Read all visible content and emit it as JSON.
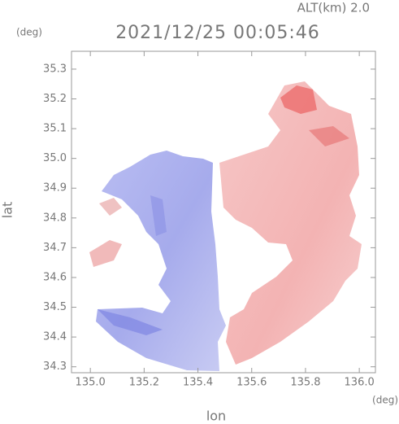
{
  "chart_data": {
    "type": "radar-field",
    "title": "2021/12/25 00:05:46",
    "subtitle": "ALT(km) 2.0",
    "x_label": "lon",
    "y_label": "lat",
    "x_unit": "(deg)",
    "y_unit": "(deg)",
    "xlim": [
      134.93,
      136.06
    ],
    "ylim": [
      34.28,
      35.36
    ],
    "xticks": [
      {
        "value": 135.0,
        "label": "135.0"
      },
      135.2,
      135.4,
      135.6,
      135.8,
      {
        "value": 136.0,
        "label": "136.0"
      }
    ],
    "yticks": [
      34.3,
      34.4,
      34.5,
      34.6,
      34.7,
      34.8,
      34.9,
      {
        "value": 35.0,
        "label": "35.0"
      },
      35.1,
      35.2,
      35.3
    ]
  }
}
